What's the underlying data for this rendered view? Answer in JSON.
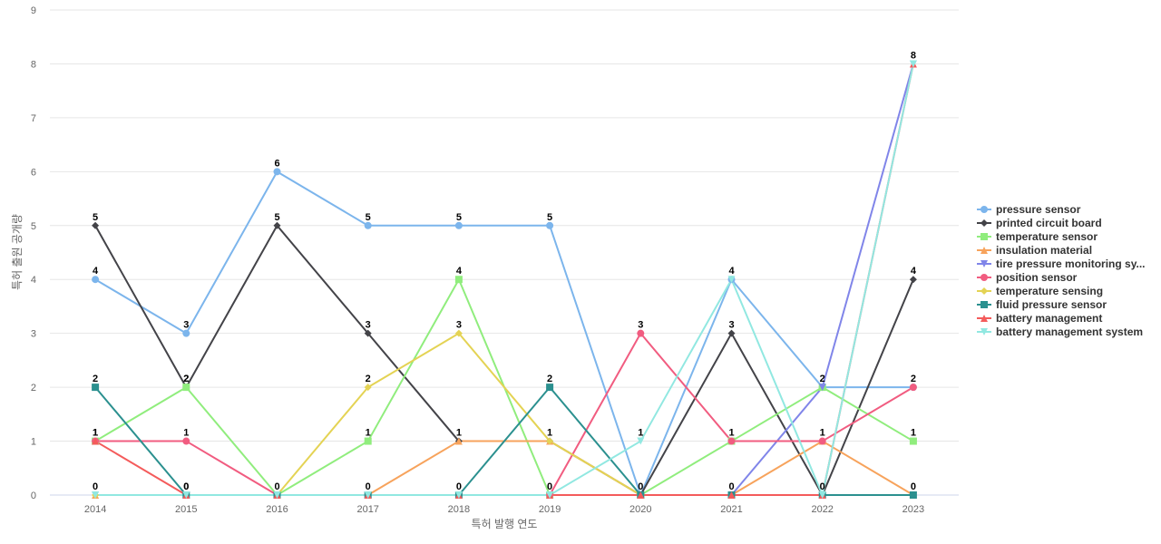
{
  "chart_data": {
    "type": "line",
    "x": [
      "2014",
      "2015",
      "2016",
      "2017",
      "2018",
      "2019",
      "2020",
      "2021",
      "2022",
      "2023"
    ],
    "xlabel": "특허 발행 연도",
    "ylabel": "특허 출원 공개량",
    "ylim": [
      0,
      9
    ],
    "yticks": [
      "0",
      "1",
      "2",
      "3",
      "4",
      "5",
      "6",
      "7",
      "8",
      "9"
    ],
    "grid": true,
    "legend_position": "right",
    "series": [
      {
        "name": "pressure sensor",
        "color": "#7cb5ec",
        "marker": "circle",
        "values": [
          4,
          3,
          6,
          5,
          5,
          5,
          0,
          4,
          2,
          2
        ]
      },
      {
        "name": "printed circuit board",
        "color": "#434348",
        "marker": "diamond",
        "values": [
          5,
          2,
          5,
          3,
          1,
          1,
          0,
          3,
          0,
          4
        ]
      },
      {
        "name": "temperature sensor",
        "color": "#90ed7d",
        "marker": "square",
        "values": [
          1,
          2,
          0,
          1,
          4,
          0,
          0,
          1,
          2,
          1
        ]
      },
      {
        "name": "insulation material",
        "color": "#f7a35c",
        "marker": "triangle",
        "values": [
          0,
          0,
          0,
          0,
          1,
          1,
          0,
          0,
          1,
          0
        ]
      },
      {
        "name": "tire pressure monitoring sy...",
        "color": "#8085e9",
        "marker": "triangle-down",
        "values": [
          0,
          0,
          0,
          0,
          0,
          0,
          0,
          0,
          2,
          8
        ]
      },
      {
        "name": "position sensor",
        "color": "#f15c80",
        "marker": "circle",
        "values": [
          1,
          1,
          0,
          0,
          0,
          0,
          3,
          1,
          1,
          2
        ]
      },
      {
        "name": "temperature sensing",
        "color": "#e4d354",
        "marker": "diamond",
        "values": [
          0,
          0,
          0,
          2,
          3,
          1,
          0,
          0,
          0,
          0
        ]
      },
      {
        "name": "fluid pressure sensor",
        "color": "#2b908f",
        "marker": "square",
        "values": [
          2,
          0,
          0,
          0,
          0,
          2,
          0,
          0,
          0,
          0
        ]
      },
      {
        "name": "battery management",
        "color": "#f45b5b",
        "marker": "triangle",
        "values": [
          1,
          0,
          0,
          0,
          0,
          0,
          0,
          0,
          0,
          8
        ]
      },
      {
        "name": "battery management system",
        "color": "#91e8e1",
        "marker": "triangle-down",
        "values": [
          0,
          0,
          0,
          0,
          0,
          0,
          1,
          4,
          0,
          8
        ]
      }
    ],
    "data_labels": [
      {
        "x": "2014",
        "values": [
          "5",
          "4",
          "2",
          "1",
          "1",
          "0"
        ]
      },
      {
        "x": "2015",
        "values": [
          "3",
          "2",
          "2",
          "1",
          "0",
          "0"
        ]
      },
      {
        "x": "2016",
        "values": [
          "6",
          "5",
          "0"
        ]
      },
      {
        "x": "2017",
        "values": [
          "5",
          "3",
          "2",
          "1",
          "0"
        ]
      },
      {
        "x": "2018",
        "values": [
          "5",
          "4",
          "3",
          "1",
          "0"
        ]
      },
      {
        "x": "2019",
        "values": [
          "5",
          "2",
          "1",
          "0"
        ]
      },
      {
        "x": "2020",
        "values": [
          "3",
          "1",
          "0"
        ]
      },
      {
        "x": "2021",
        "values": [
          "4",
          "3",
          "1",
          "0"
        ]
      },
      {
        "x": "2022",
        "values": [
          "2",
          "1",
          "0"
        ]
      },
      {
        "x": "2023",
        "values": [
          "8",
          "4",
          "2",
          "1",
          "0"
        ]
      }
    ]
  }
}
